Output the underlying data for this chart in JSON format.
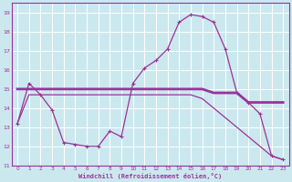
{
  "xlabel": "Windchill (Refroidissement éolien,°C)",
  "xlim": [
    -0.5,
    23.5
  ],
  "ylim": [
    11,
    19.5
  ],
  "yticks": [
    11,
    12,
    13,
    14,
    15,
    16,
    17,
    18,
    19
  ],
  "xticks": [
    0,
    1,
    2,
    3,
    4,
    5,
    6,
    7,
    8,
    9,
    10,
    11,
    12,
    13,
    14,
    15,
    16,
    17,
    18,
    19,
    20,
    21,
    22,
    23
  ],
  "bg_color": "#cce8ef",
  "grid_color": "#ffffff",
  "line_color": "#993399",
  "line1_x": [
    0,
    1,
    2,
    3,
    4,
    5,
    6,
    7,
    8,
    9,
    10,
    11,
    12,
    13,
    14,
    15,
    16,
    17,
    18,
    19,
    20,
    21,
    22,
    23
  ],
  "line1_y": [
    13.2,
    15.3,
    14.7,
    13.9,
    12.2,
    12.1,
    12.0,
    12.0,
    12.8,
    12.5,
    15.3,
    16.1,
    16.5,
    17.1,
    18.5,
    18.9,
    18.8,
    18.5,
    17.1,
    14.8,
    14.3,
    13.7,
    11.5,
    11.3
  ],
  "line2_x": [
    0,
    1,
    2,
    3,
    4,
    5,
    6,
    7,
    8,
    9,
    10,
    11,
    12,
    13,
    14,
    15,
    16,
    17,
    18,
    19,
    20,
    21,
    22,
    23
  ],
  "line2_y": [
    15.0,
    15.0,
    15.0,
    15.0,
    15.0,
    15.0,
    15.0,
    15.0,
    15.0,
    15.0,
    15.0,
    15.0,
    15.0,
    15.0,
    15.0,
    15.0,
    15.0,
    14.8,
    14.8,
    14.8,
    14.3,
    14.3,
    14.3,
    14.3
  ],
  "line3_x": [
    0,
    1,
    2,
    3,
    4,
    5,
    6,
    7,
    8,
    9,
    10,
    11,
    12,
    13,
    14,
    15,
    16,
    17,
    18,
    19,
    20,
    21,
    22,
    23
  ],
  "line3_y": [
    13.2,
    14.7,
    14.7,
    14.7,
    14.7,
    14.7,
    14.7,
    14.7,
    14.7,
    14.7,
    14.7,
    14.7,
    14.7,
    14.7,
    14.7,
    14.7,
    14.5,
    14.0,
    13.5,
    13.0,
    12.5,
    12.0,
    11.5,
    11.3
  ]
}
